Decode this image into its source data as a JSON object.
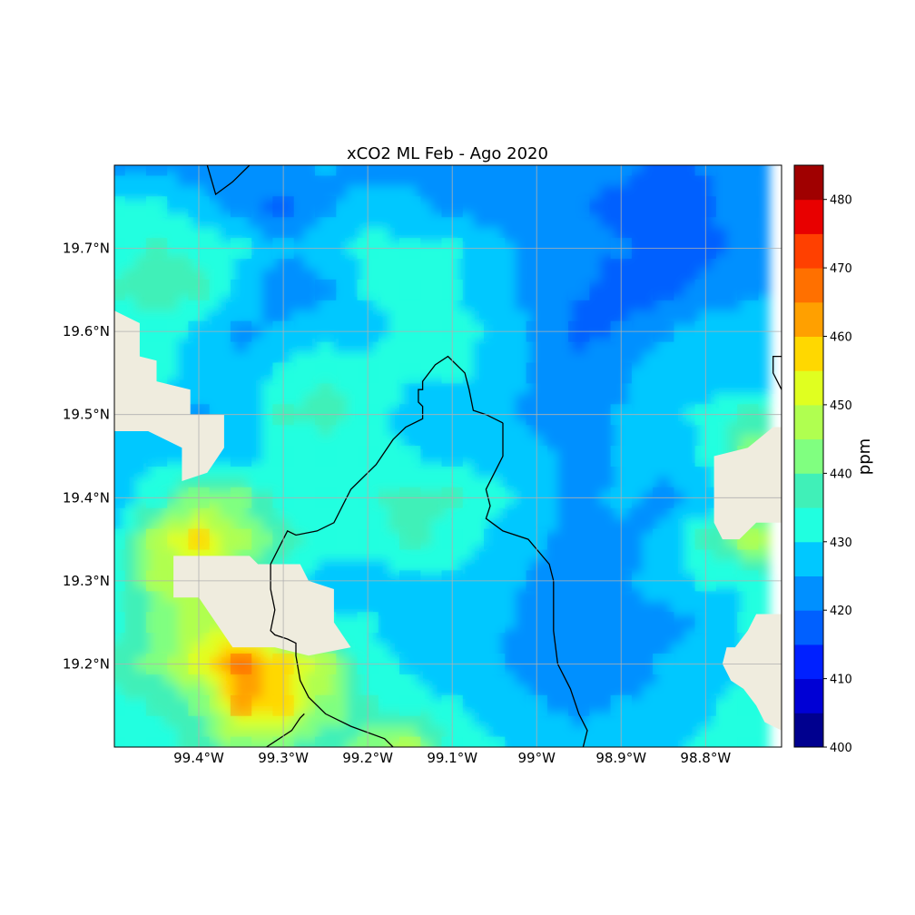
{
  "chart_data": {
    "type": "heatmap",
    "title": "xCO2 ML Feb - Ago 2020",
    "xlabel": "",
    "ylabel": "",
    "xlim": [
      -99.5,
      -98.71
    ],
    "ylim": [
      19.1,
      19.8
    ],
    "x_ticks": [
      {
        "value": -99.4,
        "label": "99.4°W"
      },
      {
        "value": -99.3,
        "label": "99.3°W"
      },
      {
        "value": -99.2,
        "label": "99.2°W"
      },
      {
        "value": -99.1,
        "label": "99.1°W"
      },
      {
        "value": -99.0,
        "label": "99°W"
      },
      {
        "value": -98.9,
        "label": "98.9°W"
      },
      {
        "value": -98.8,
        "label": "98.8°W"
      }
    ],
    "y_ticks": [
      {
        "value": 19.7,
        "label": "19.7°N"
      },
      {
        "value": 19.6,
        "label": "19.6°N"
      },
      {
        "value": 19.5,
        "label": "19.5°N"
      },
      {
        "value": 19.4,
        "label": "19.4°N"
      },
      {
        "value": 19.3,
        "label": "19.3°N"
      },
      {
        "value": 19.2,
        "label": "19.2°N"
      }
    ],
    "grid": true,
    "colorbar": {
      "label": "ppm",
      "min": 400,
      "max": 485,
      "step": 5,
      "tick_values": [
        400,
        410,
        420,
        430,
        440,
        450,
        460,
        470,
        480
      ],
      "tick_labels": [
        "400",
        "410",
        "420",
        "430",
        "440",
        "450",
        "460",
        "470",
        "480"
      ],
      "colors": [
        "#00008f",
        "#0000d5",
        "#0020ff",
        "#0060ff",
        "#0090ff",
        "#00c8ff",
        "#20ffe0",
        "#40f0b8",
        "#80ff80",
        "#b0ff50",
        "#e0ff20",
        "#ffd800",
        "#ffa000",
        "#ff7000",
        "#ff4000",
        "#e80000",
        "#a00000"
      ]
    },
    "field": {
      "lon_start": -99.5,
      "lat_start": 19.1,
      "step": 0.05,
      "rows_from_north": [
        [
          424,
          424,
          422,
          424,
          424,
          425,
          423,
          423,
          423,
          422,
          424,
          422,
          421,
          419,
          420,
          423
        ],
        [
          430,
          430,
          427,
          423,
          418,
          424,
          428,
          426,
          424,
          423,
          423,
          420,
          418,
          416,
          419,
          423
        ],
        [
          433,
          435,
          434,
          430,
          425,
          428,
          432,
          431,
          430,
          426,
          424,
          422,
          420,
          417,
          418,
          422
        ],
        [
          435,
          438,
          436,
          428,
          422,
          424,
          430,
          434,
          430,
          427,
          423,
          420,
          418,
          418,
          422,
          424
        ],
        [
          432,
          433,
          429,
          424,
          426,
          428,
          427,
          433,
          432,
          429,
          424,
          419,
          420,
          424,
          427,
          428
        ],
        [
          433,
          432,
          427,
          426,
          431,
          434,
          433,
          430,
          431,
          428,
          424,
          421,
          424,
          428,
          427,
          426
        ],
        [
          430,
          428,
          424,
          427,
          435,
          437,
          433,
          428,
          427,
          426,
          424,
          424,
          425,
          428,
          431,
          436
        ],
        [
          428,
          429,
          426,
          428,
          432,
          432,
          431,
          430,
          429,
          428,
          426,
          424,
          425,
          428,
          430,
          442
        ],
        [
          427,
          434,
          443,
          440,
          433,
          431,
          434,
          437,
          435,
          431,
          428,
          423,
          426,
          423,
          426,
          432
        ],
        [
          430,
          448,
          455,
          447,
          437,
          432,
          432,
          436,
          433,
          429,
          426,
          422,
          423,
          426,
          436,
          446
        ],
        [
          432,
          445,
          450,
          440,
          433,
          428,
          427,
          429,
          429,
          427,
          424,
          421,
          424,
          428,
          430,
          430
        ],
        [
          433,
          440,
          448,
          447,
          436,
          430,
          430,
          428,
          427,
          426,
          424,
          423,
          422,
          422,
          426,
          430
        ],
        [
          438,
          442,
          452,
          465,
          455,
          448,
          432,
          429,
          426,
          425,
          422,
          420,
          421,
          425,
          428,
          430
        ],
        [
          432,
          435,
          440,
          460,
          458,
          444,
          436,
          432,
          430,
          428,
          425,
          424,
          425,
          426,
          429,
          432
        ],
        [
          430,
          433,
          436,
          444,
          440,
          436,
          442,
          448,
          432,
          430,
          428,
          426,
          427,
          428,
          431,
          433
        ]
      ]
    },
    "land_color": "#efecde",
    "border_color": "#000000"
  }
}
